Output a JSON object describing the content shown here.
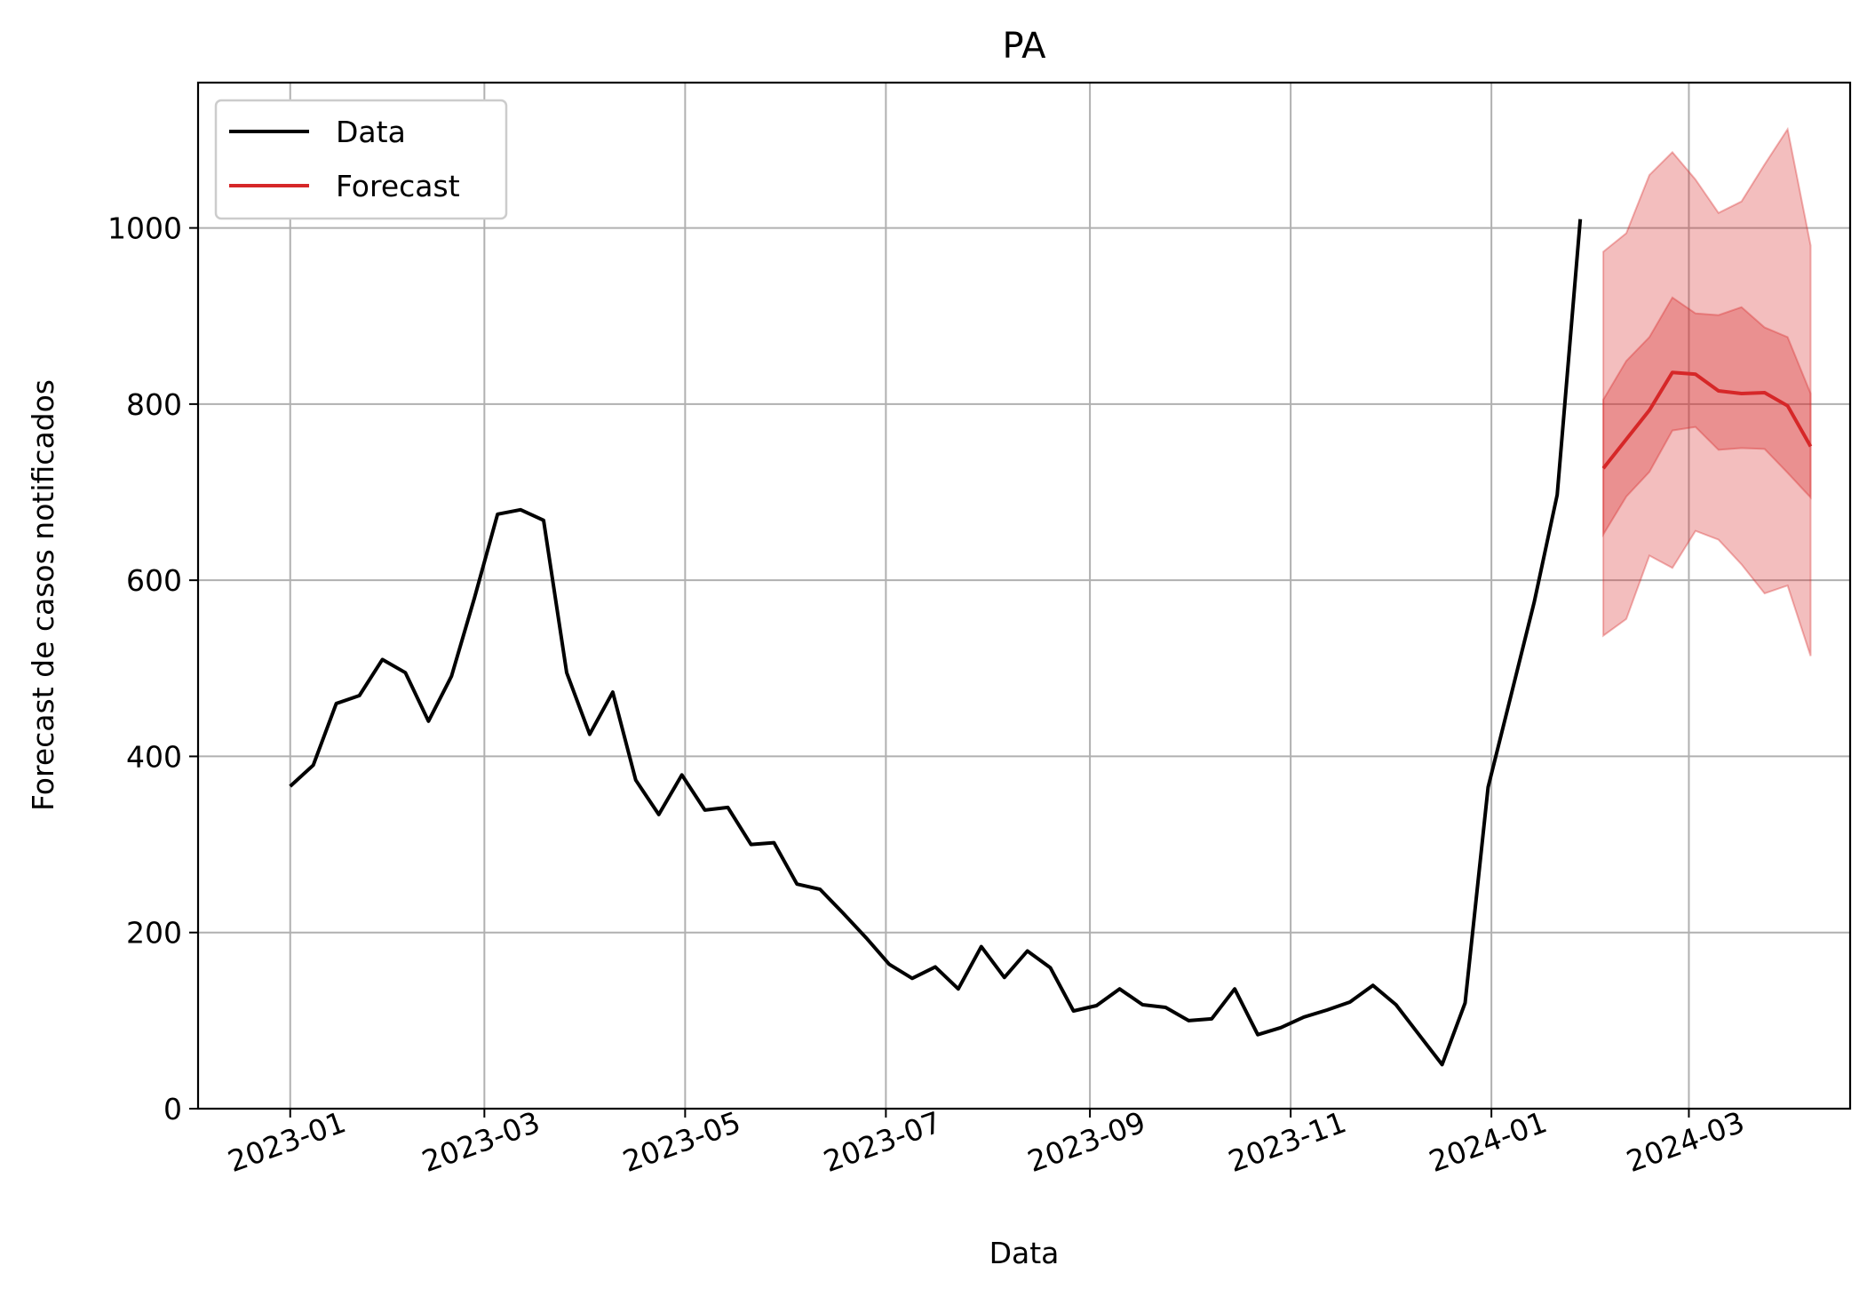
{
  "chart_data": {
    "type": "line",
    "title": "PA",
    "xlabel": "Data",
    "ylabel": "Forecast de casos notificados",
    "xlim": [
      "2022-12-04",
      "2024-04-19"
    ],
    "ylim": [
      0,
      1165
    ],
    "grid": true,
    "legend_placement": "top-left",
    "x_ticks": [
      {
        "date": "2023-01-01",
        "label": "2023-01"
      },
      {
        "date": "2023-03-01",
        "label": "2023-03"
      },
      {
        "date": "2023-05-01",
        "label": "2023-05"
      },
      {
        "date": "2023-07-01",
        "label": "2023-07"
      },
      {
        "date": "2023-09-01",
        "label": "2023-09"
      },
      {
        "date": "2023-11-01",
        "label": "2023-11"
      },
      {
        "date": "2024-01-01",
        "label": "2024-01"
      },
      {
        "date": "2024-03-01",
        "label": "2024-03"
      }
    ],
    "y_ticks": [
      {
        "value": 0,
        "label": "0"
      },
      {
        "value": 200,
        "label": "200"
      },
      {
        "value": 400,
        "label": "400"
      },
      {
        "value": 600,
        "label": "600"
      },
      {
        "value": 800,
        "label": "800"
      },
      {
        "value": 1000,
        "label": "1000"
      }
    ],
    "series": [
      {
        "name": "Data",
        "color": "#000000",
        "x": [
          "2023-01-01",
          "2023-01-08",
          "2023-01-15",
          "2023-01-22",
          "2023-01-29",
          "2023-02-05",
          "2023-02-12",
          "2023-02-19",
          "2023-02-26",
          "2023-03-05",
          "2023-03-12",
          "2023-03-19",
          "2023-03-26",
          "2023-04-02",
          "2023-04-09",
          "2023-04-16",
          "2023-04-23",
          "2023-04-30",
          "2023-05-07",
          "2023-05-14",
          "2023-05-21",
          "2023-05-28",
          "2023-06-04",
          "2023-06-11",
          "2023-06-18",
          "2023-06-25",
          "2023-07-02",
          "2023-07-09",
          "2023-07-16",
          "2023-07-23",
          "2023-07-30",
          "2023-08-06",
          "2023-08-13",
          "2023-08-20",
          "2023-08-27",
          "2023-09-03",
          "2023-09-10",
          "2023-09-17",
          "2023-09-24",
          "2023-10-01",
          "2023-10-08",
          "2023-10-15",
          "2023-10-22",
          "2023-10-29",
          "2023-11-05",
          "2023-11-12",
          "2023-11-19",
          "2023-11-26",
          "2023-12-03",
          "2023-12-10",
          "2023-12-17",
          "2023-12-24",
          "2023-12-31",
          "2024-01-07",
          "2024-01-14",
          "2024-01-21",
          "2024-01-28"
        ],
        "y": [
          366,
          390,
          460,
          469,
          510,
          495,
          440,
          491,
          580,
          675,
          680,
          668,
          495,
          425,
          473,
          373,
          334,
          379,
          339,
          342,
          300,
          302,
          255,
          249,
          222,
          194,
          164,
          148,
          161,
          136,
          184,
          149,
          179,
          160,
          111,
          117,
          136,
          118,
          115,
          100,
          102,
          136,
          84,
          92,
          104,
          112,
          121,
          140,
          118,
          84,
          50,
          120,
          365,
          470,
          575,
          697,
          1010
        ]
      },
      {
        "name": "Forecast",
        "color": "#d62728",
        "x": [
          "2024-02-04",
          "2024-02-11",
          "2024-02-18",
          "2024-02-25",
          "2024-03-03",
          "2024-03-10",
          "2024-03-17",
          "2024-03-24",
          "2024-03-31",
          "2024-04-07"
        ],
        "y": [
          727,
          760,
          793,
          836,
          834,
          815,
          812,
          813,
          798,
          752
        ],
        "inner_lower": [
          652,
          695,
          723,
          770,
          774,
          748,
          750,
          749,
          722,
          694
        ],
        "inner_upper": [
          805,
          849,
          876,
          921,
          903,
          901,
          910,
          887,
          876,
          812
        ],
        "outer_lower": [
          537,
          556,
          628,
          614,
          656,
          646,
          618,
          585,
          594,
          514
        ],
        "outer_upper": [
          973,
          994,
          1060,
          1086,
          1055,
          1017,
          1030,
          1072,
          1112,
          980
        ]
      }
    ]
  }
}
